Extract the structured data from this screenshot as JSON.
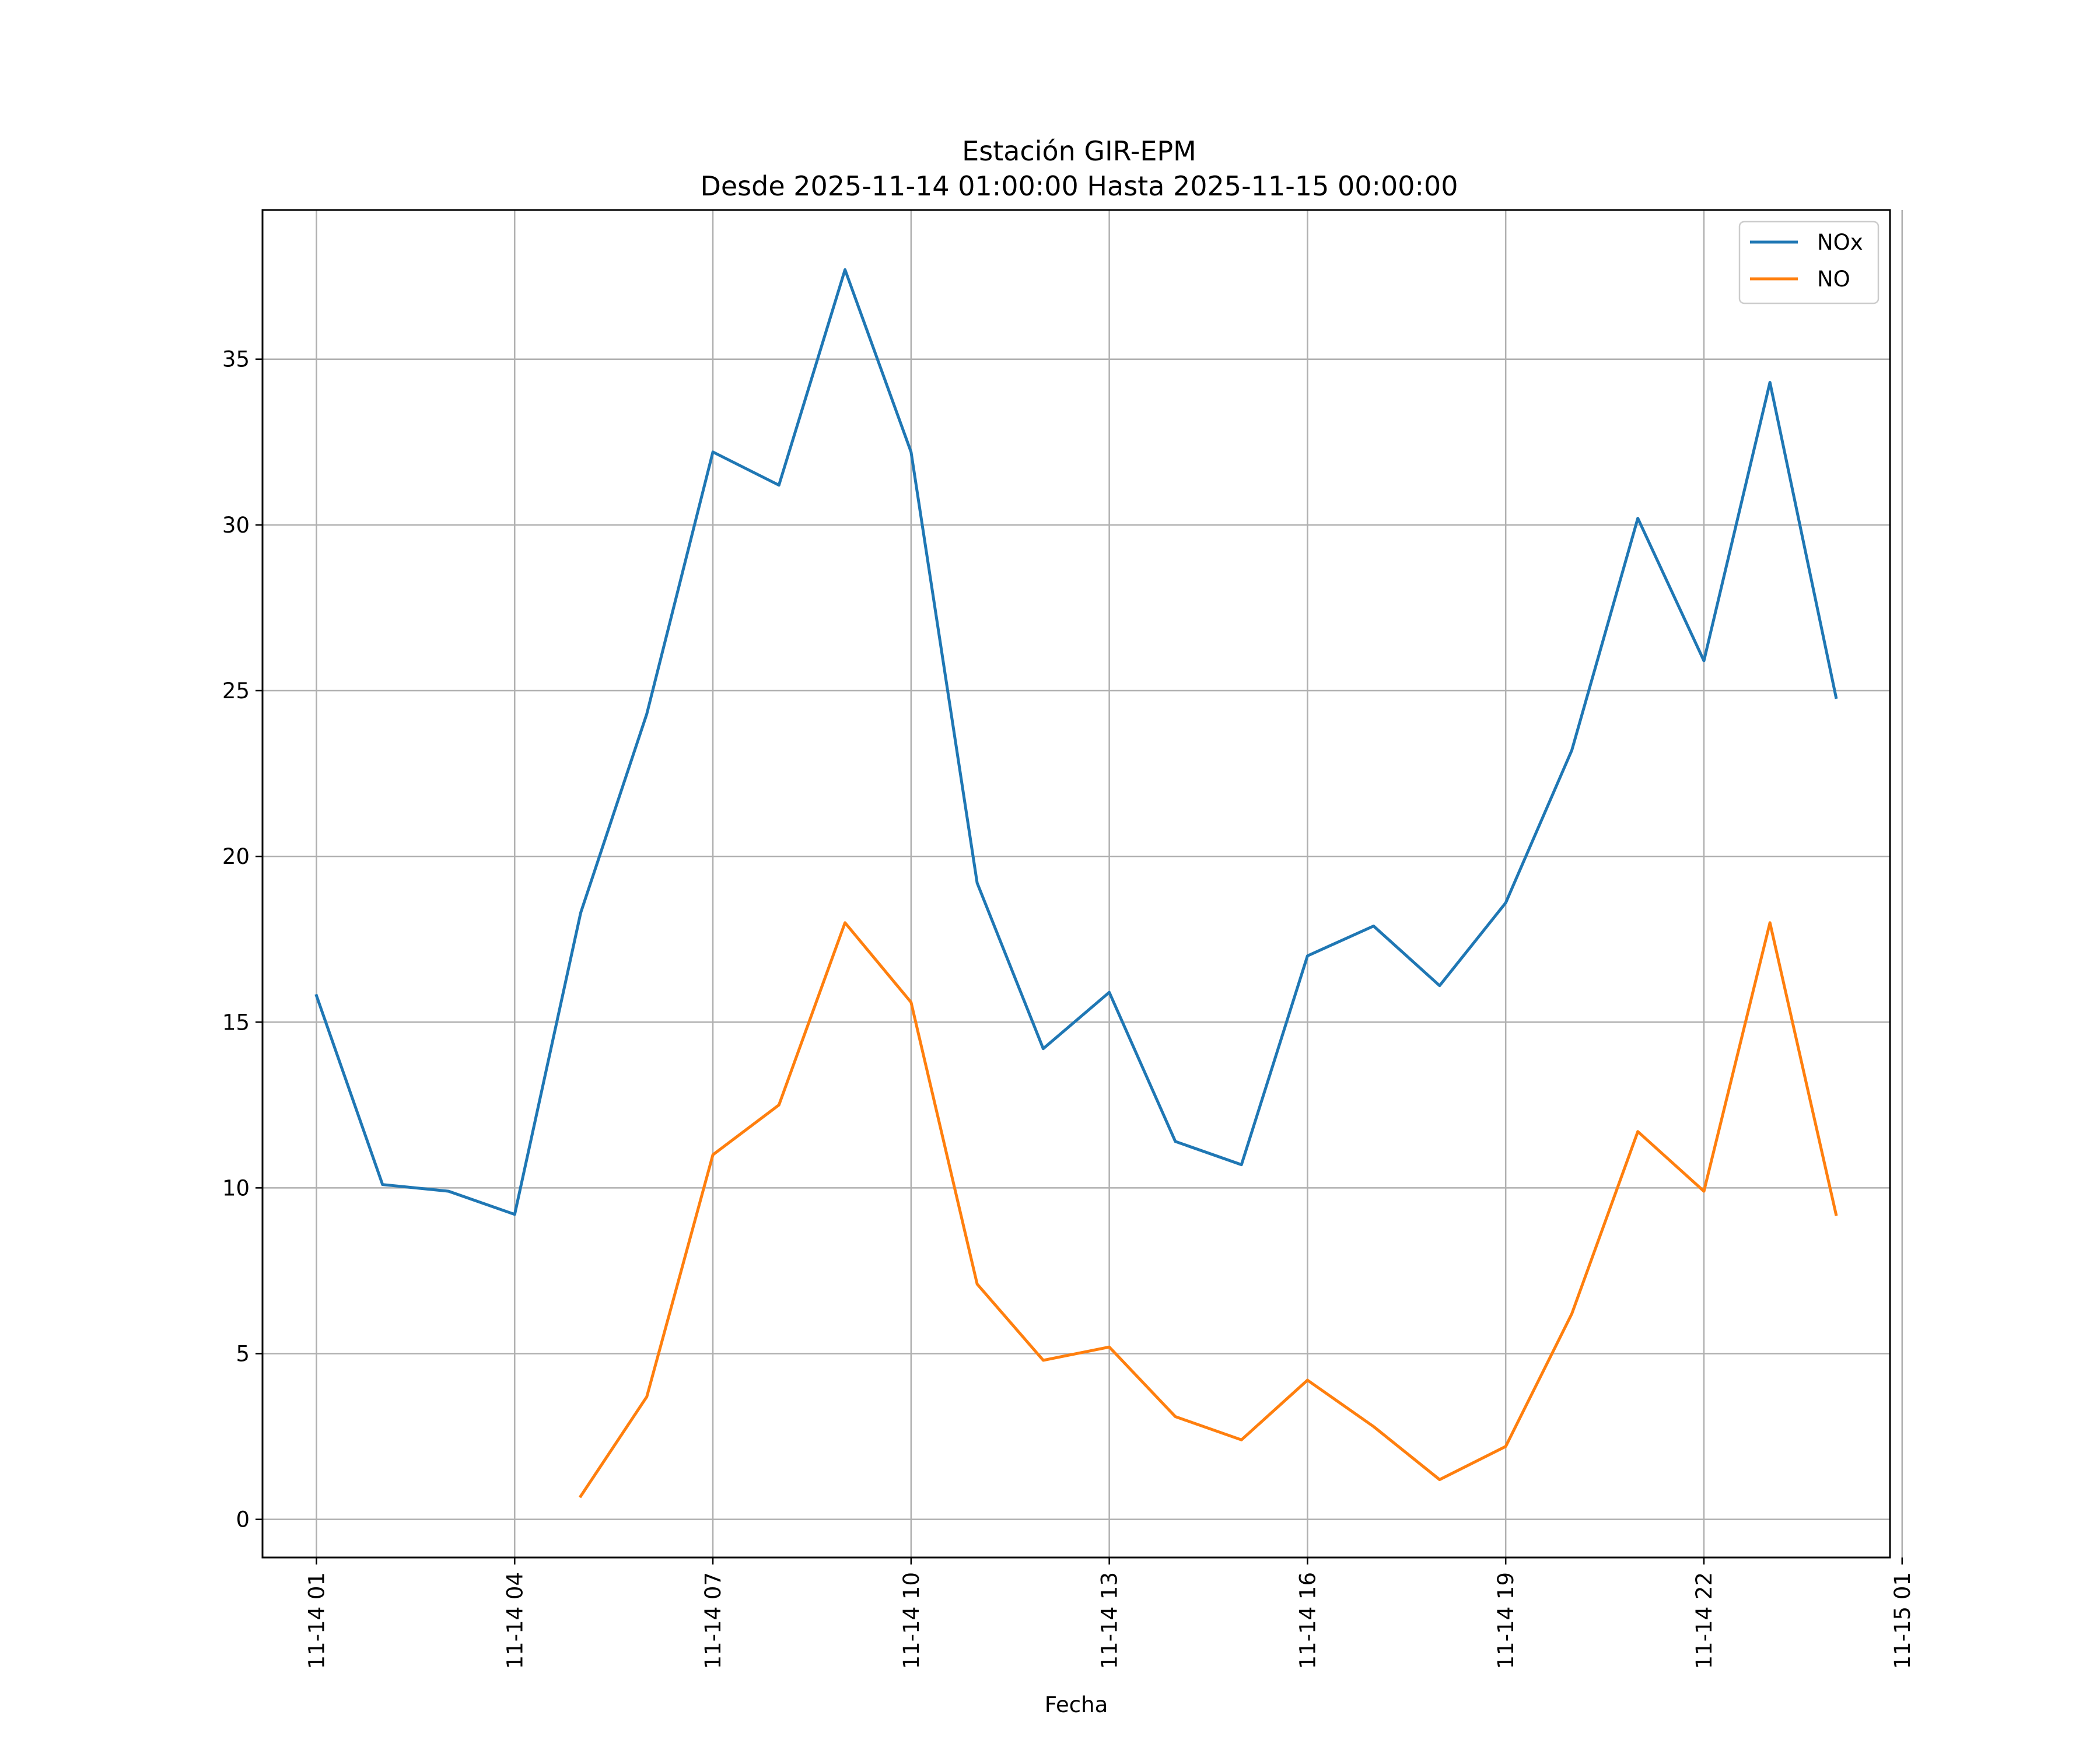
{
  "chart_data": {
    "type": "line",
    "title": "Estación GIR-EPM",
    "subtitle": "Desde 2025-11-14 01:00:00 Hasta 2025-11-15 00:00:00",
    "xlabel": "Fecha",
    "ylabel": "",
    "x": [
      "2025-11-14 01:00",
      "2025-11-14 02:00",
      "2025-11-14 03:00",
      "2025-11-14 04:00",
      "2025-11-14 05:00",
      "2025-11-14 06:00",
      "2025-11-14 07:00",
      "2025-11-14 08:00",
      "2025-11-14 09:00",
      "2025-11-14 10:00",
      "2025-11-14 11:00",
      "2025-11-14 12:00",
      "2025-11-14 13:00",
      "2025-11-14 14:00",
      "2025-11-14 15:00",
      "2025-11-14 16:00",
      "2025-11-14 17:00",
      "2025-11-14 18:00",
      "2025-11-14 19:00",
      "2025-11-14 20:00",
      "2025-11-14 21:00",
      "2025-11-14 22:00",
      "2025-11-14 23:00",
      "2025-11-15 00:00"
    ],
    "xlim": [
      "2025-11-14 00:11",
      "2025-11-15 00:49"
    ],
    "ylim": [
      -1.15,
      39.5
    ],
    "x_ticks": [
      {
        "x": "2025-11-14 01:00",
        "label": "11-14 01"
      },
      {
        "x": "2025-11-14 04:00",
        "label": "11-14 04"
      },
      {
        "x": "2025-11-14 07:00",
        "label": "11-14 07"
      },
      {
        "x": "2025-11-14 10:00",
        "label": "11-14 10"
      },
      {
        "x": "2025-11-14 13:00",
        "label": "11-14 13"
      },
      {
        "x": "2025-11-14 16:00",
        "label": "11-14 16"
      },
      {
        "x": "2025-11-14 19:00",
        "label": "11-14 19"
      },
      {
        "x": "2025-11-14 22:00",
        "label": "11-14 22"
      },
      {
        "x": "2025-11-15 01:00",
        "label": "11-15 01"
      }
    ],
    "y_ticks": [
      {
        "value": 0,
        "label": "0"
      },
      {
        "value": 5,
        "label": "5"
      },
      {
        "value": 10,
        "label": "10"
      },
      {
        "value": 15,
        "label": "15"
      },
      {
        "value": 20,
        "label": "20"
      },
      {
        "value": 25,
        "label": "25"
      },
      {
        "value": 30,
        "label": "30"
      },
      {
        "value": 35,
        "label": "35"
      }
    ],
    "grid": true,
    "legend_position": "top-right",
    "series": [
      {
        "name": "NOx",
        "color": "#1f77b4",
        "values": [
          15.8,
          10.1,
          9.9,
          9.2,
          18.3,
          24.3,
          32.2,
          31.2,
          37.7,
          32.2,
          19.2,
          14.2,
          15.9,
          11.4,
          10.7,
          17.0,
          17.9,
          16.1,
          18.6,
          23.2,
          30.2,
          25.9,
          34.3,
          24.8
        ]
      },
      {
        "name": "NO",
        "color": "#ff7f0e",
        "values": [
          null,
          null,
          null,
          null,
          0.7,
          3.7,
          11.0,
          12.5,
          18.0,
          15.6,
          7.1,
          4.8,
          5.2,
          3.1,
          2.4,
          4.2,
          2.8,
          1.2,
          2.2,
          6.2,
          11.7,
          9.9,
          18.0,
          9.2
        ]
      }
    ]
  }
}
